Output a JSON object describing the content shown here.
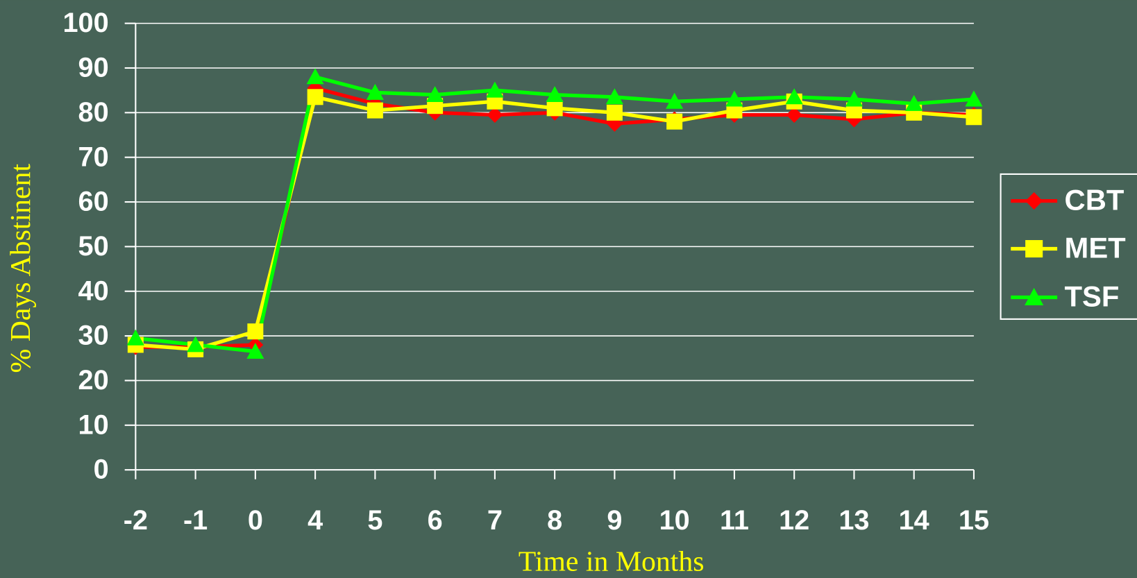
{
  "chart_data": {
    "type": "line",
    "x_label": "Time in Months",
    "y_label": "% Days Abstinent",
    "categories": [
      "-2",
      "-1",
      "0",
      "4",
      "5",
      "6",
      "7",
      "8",
      "9",
      "10",
      "11",
      "12",
      "13",
      "14",
      "15"
    ],
    "series": [
      {
        "name": "CBT",
        "color": "#ff0000",
        "marker": "diamond",
        "values": [
          27.5,
          27.5,
          28,
          85.5,
          82,
          80,
          79.5,
          80,
          77.5,
          78.5,
          79.5,
          79.5,
          78.5,
          80,
          79.5
        ]
      },
      {
        "name": "MET",
        "color": "#ffff00",
        "marker": "square",
        "values": [
          28,
          27,
          31,
          83.5,
          80.5,
          81.5,
          82.5,
          81,
          80,
          78,
          80.5,
          82.5,
          80.5,
          80,
          79
        ]
      },
      {
        "name": "TSF",
        "color": "#00ff00",
        "marker": "triangle",
        "values": [
          29.5,
          28,
          26.5,
          88,
          84.5,
          84,
          85,
          84,
          83.5,
          82.5,
          83,
          83.5,
          83,
          82,
          83
        ]
      }
    ],
    "ylim": [
      0,
      100
    ],
    "yticks": [
      0,
      10,
      20,
      30,
      40,
      50,
      60,
      70,
      80,
      90,
      100
    ],
    "grid": true,
    "legend": "right"
  }
}
